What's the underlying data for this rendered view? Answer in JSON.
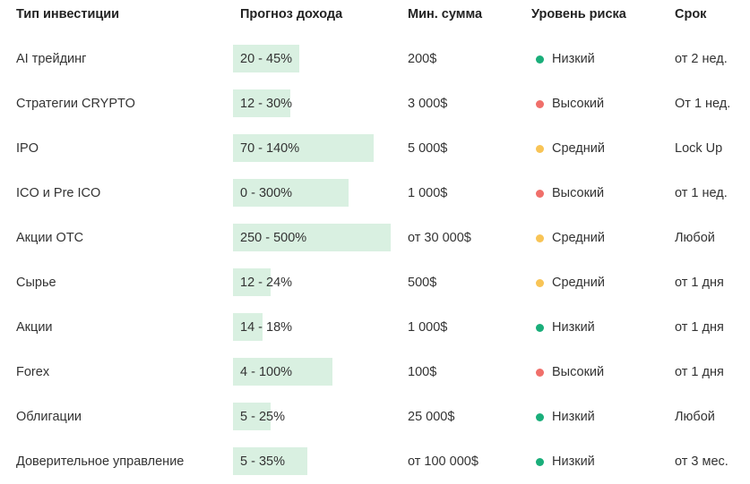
{
  "colors": {
    "bar": "#d9f0e1",
    "risk_low": "#1aae7a",
    "risk_high": "#f06f6a",
    "risk_medium": "#f8c456"
  },
  "header": {
    "type": "Тип инвестиции",
    "forecast": "Прогноз дохода",
    "min_sum": "Мин. сумма",
    "risk": "Уровень риска",
    "term": "Срок"
  },
  "rows": [
    {
      "type": "AI трейдинг",
      "forecast": "20 - 45%",
      "forecast_max_pct": 45,
      "min_sum": "200$",
      "risk": "Низкий",
      "risk_level": "low",
      "term": "от 2 нед."
    },
    {
      "type": "Стратегии CRYPTO",
      "forecast": "12 - 30%",
      "forecast_max_pct": 30,
      "min_sum": "3 000$",
      "risk": "Высокий",
      "risk_level": "high",
      "term": "От 1 нед."
    },
    {
      "type": "IPO",
      "forecast": "70 - 140%",
      "forecast_max_pct": 140,
      "min_sum": "5 000$",
      "risk": "Средний",
      "risk_level": "medium",
      "term": "Lock Up"
    },
    {
      "type": "ICO и Pre ICO",
      "forecast": "0 - 300%",
      "forecast_max_pct": 300,
      "min_sum": "1 000$",
      "risk": "Высокий",
      "risk_level": "high",
      "term": "от 1 нед."
    },
    {
      "type": "Акции OTC",
      "forecast": "250 - 500%",
      "forecast_max_pct": 500,
      "min_sum": "от 30 000$",
      "risk": "Средний",
      "risk_level": "medium",
      "term": "Любой"
    },
    {
      "type": "Сырье",
      "forecast": "12 - 24%",
      "forecast_max_pct": 24,
      "min_sum": "500$",
      "risk": "Средний",
      "risk_level": "medium",
      "term": "от 1 дня"
    },
    {
      "type": "Акции",
      "forecast": "14 - 18%",
      "forecast_max_pct": 18,
      "min_sum": "1 000$",
      "risk": "Низкий",
      "risk_level": "low",
      "term": "от 1 дня"
    },
    {
      "type": "Forex",
      "forecast": "4 - 100%",
      "forecast_max_pct": 100,
      "min_sum": "100$",
      "risk": "Высокий",
      "risk_level": "high",
      "term": "от 1 дня"
    },
    {
      "type": "Облигации",
      "forecast": "5 - 25%",
      "forecast_max_pct": 25,
      "min_sum": "25 000$",
      "risk": "Низкий",
      "risk_level": "low",
      "term": "Любой"
    },
    {
      "type": "Доверительное управление",
      "forecast": "5 - 35%",
      "forecast_max_pct": 35,
      "min_sum": "от 100 000$",
      "risk": "Низкий",
      "risk_level": "low",
      "term": "от 3 мес."
    }
  ]
}
